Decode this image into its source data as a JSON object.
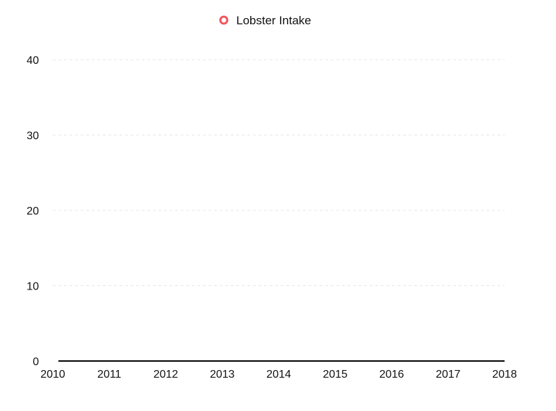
{
  "chart_data": {
    "type": "line",
    "title": "",
    "xlabel": "",
    "ylabel": "",
    "legend_position": "top-center",
    "grid": true,
    "x_ticks": [
      "2010",
      "2011",
      "2012",
      "2013",
      "2014",
      "2015",
      "2016",
      "2017",
      "2018"
    ],
    "y_ticks": [
      "0",
      "10",
      "20",
      "30",
      "40"
    ],
    "xlim": [
      2010,
      2018
    ],
    "ylim": [
      0,
      40
    ],
    "series": [
      {
        "name": "Lobster Intake",
        "color": "#f2545b",
        "marker": "circle-open",
        "x": [],
        "y": []
      }
    ]
  }
}
